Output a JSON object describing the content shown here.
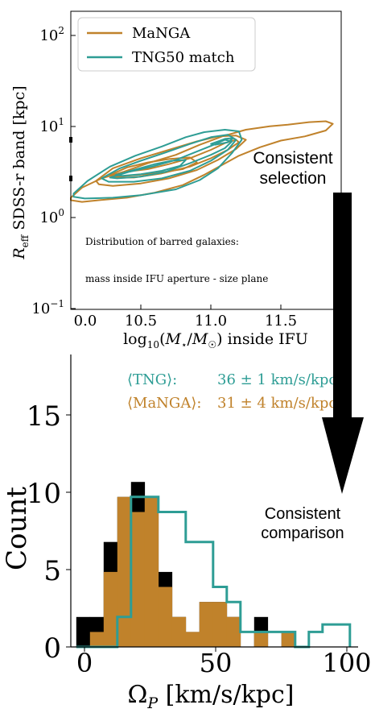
{
  "colors": {
    "manga": "#c0822b",
    "tng": "#2e9d95",
    "black": "#000000"
  },
  "annotations": {
    "selection": "Consistent\nselection",
    "comparison": "Consistent\ncomparison"
  },
  "chart_data": [
    {
      "type": "contour",
      "ylabel": "R_eff SDSS-r band [kpc]",
      "xlabel": "log10(M*/M☉) inside IFU",
      "x_ticks": [
        "0.0",
        "10.5",
        "11.0",
        "11.5"
      ],
      "y_ticks": [
        "10^-1",
        "10^0",
        "10^1",
        "10^2"
      ],
      "xlim": [
        10.0,
        11.93
      ],
      "ylim_log10": [
        -1,
        2.55
      ],
      "y_scale": "log",
      "legend": {
        "placement": "top-left",
        "entries": [
          "MaNGA",
          "TNG50 match"
        ]
      },
      "text_lines": [
        "Distribution of barred galaxies:",
        "mass inside IFU aperture - size plane"
      ],
      "series": [
        {
          "name": "MaNGA",
          "contours": [
            [
              [
                10.0,
                0.33
              ],
              [
                10.08,
                0.45
              ],
              [
                10.22,
                0.56
              ],
              [
                10.38,
                0.64
              ],
              [
                10.55,
                0.74
              ],
              [
                10.75,
                0.84
              ],
              [
                10.92,
                0.96
              ],
              [
                11.08,
                1.06
              ],
              [
                11.25,
                1.14
              ],
              [
                11.42,
                1.18
              ],
              [
                11.55,
                1.2
              ],
              [
                11.7,
                1.23
              ],
              [
                11.82,
                1.24
              ],
              [
                11.87,
                1.21
              ],
              [
                11.82,
                1.13
              ],
              [
                11.67,
                1.06
              ],
              [
                11.5,
                1.01
              ],
              [
                11.35,
                0.93
              ],
              [
                11.2,
                0.83
              ],
              [
                11.08,
                0.72
              ],
              [
                10.95,
                0.6
              ],
              [
                10.8,
                0.48
              ],
              [
                10.6,
                0.39
              ],
              [
                10.4,
                0.33
              ],
              [
                10.2,
                0.3
              ],
              [
                10.08,
                0.28
              ],
              [
                10.0,
                0.3
              ]
            ],
            [
              [
                10.18,
                0.53
              ],
              [
                10.3,
                0.68
              ],
              [
                10.5,
                0.8
              ],
              [
                10.7,
                0.9
              ],
              [
                10.9,
                1.0
              ],
              [
                11.05,
                1.06
              ],
              [
                11.18,
                1.07
              ],
              [
                11.25,
                1.02
              ],
              [
                11.18,
                0.91
              ],
              [
                11.05,
                0.78
              ],
              [
                10.9,
                0.66
              ],
              [
                10.7,
                0.56
              ],
              [
                10.5,
                0.5
              ],
              [
                10.3,
                0.47
              ],
              [
                10.2,
                0.49
              ]
            ],
            [
              [
                10.3,
                0.59
              ],
              [
                10.4,
                0.64
              ],
              [
                10.55,
                0.67
              ],
              [
                10.7,
                0.73
              ],
              [
                10.85,
                0.8
              ],
              [
                11.0,
                0.9
              ],
              [
                11.1,
                0.98
              ],
              [
                11.18,
                1.02
              ],
              [
                11.2,
                0.99
              ],
              [
                11.12,
                0.9
              ],
              [
                11.0,
                0.8
              ],
              [
                10.85,
                0.7
              ],
              [
                10.65,
                0.62
              ],
              [
                10.45,
                0.57
              ],
              [
                10.33,
                0.57
              ]
            ],
            [
              [
                10.28,
                0.6
              ],
              [
                10.4,
                0.69
              ],
              [
                10.55,
                0.75
              ],
              [
                10.7,
                0.79
              ],
              [
                10.85,
                0.81
              ],
              [
                10.9,
                0.75
              ],
              [
                10.8,
                0.67
              ],
              [
                10.6,
                0.62
              ],
              [
                10.4,
                0.59
              ],
              [
                10.3,
                0.58
              ]
            ]
          ]
        },
        {
          "name": "TNG50 match",
          "contours": [
            [
              [
                10.02,
                0.38
              ],
              [
                10.12,
                0.53
              ],
              [
                10.28,
                0.7
              ],
              [
                10.46,
                0.83
              ],
              [
                10.65,
                0.94
              ],
              [
                10.82,
                1.05
              ],
              [
                10.95,
                1.11
              ],
              [
                11.1,
                1.14
              ],
              [
                11.2,
                1.12
              ],
              [
                11.22,
                1.02
              ],
              [
                11.15,
                0.86
              ],
              [
                11.05,
                0.68
              ],
              [
                10.92,
                0.54
              ],
              [
                10.75,
                0.43
              ],
              [
                10.5,
                0.36
              ],
              [
                10.3,
                0.33
              ],
              [
                10.1,
                0.32
              ],
              [
                10.02,
                0.34
              ]
            ],
            [
              [
                10.22,
                0.56
              ],
              [
                10.35,
                0.68
              ],
              [
                10.5,
                0.77
              ],
              [
                10.68,
                0.87
              ],
              [
                10.85,
                0.97
              ],
              [
                11.0,
                1.05
              ],
              [
                11.12,
                1.08
              ],
              [
                11.18,
                1.02
              ],
              [
                11.12,
                0.9
              ],
              [
                11.0,
                0.77
              ],
              [
                10.85,
                0.65
              ],
              [
                10.65,
                0.56
              ],
              [
                10.45,
                0.52
              ],
              [
                10.27,
                0.52
              ]
            ],
            [
              [
                10.28,
                0.57
              ],
              [
                10.42,
                0.64
              ],
              [
                10.58,
                0.7
              ],
              [
                10.75,
                0.78
              ],
              [
                10.9,
                0.88
              ],
              [
                11.02,
                0.96
              ],
              [
                11.1,
                1.02
              ],
              [
                11.15,
                1.0
              ],
              [
                11.1,
                0.92
              ],
              [
                11.0,
                0.84
              ],
              [
                10.85,
                0.74
              ],
              [
                10.68,
                0.64
              ],
              [
                10.5,
                0.58
              ],
              [
                10.33,
                0.56
              ]
            ],
            [
              [
                10.32,
                0.6
              ],
              [
                10.45,
                0.66
              ],
              [
                10.6,
                0.73
              ],
              [
                10.72,
                0.77
              ],
              [
                10.82,
                0.78
              ],
              [
                10.78,
                0.71
              ],
              [
                10.65,
                0.65
              ],
              [
                10.5,
                0.61
              ],
              [
                10.37,
                0.59
              ]
            ],
            [
              [
                11.0,
                0.97
              ],
              [
                11.1,
                1.03
              ],
              [
                11.16,
                1.04
              ],
              [
                11.12,
                0.99
              ],
              [
                11.03,
                0.96
              ]
            ]
          ]
        }
      ]
    },
    {
      "type": "histogram",
      "xlabel": "Ω_P [km/s/kpc]",
      "ylabel": "Count",
      "xlim": [
        -2,
        103
      ],
      "ylim": [
        0,
        19.5
      ],
      "x_ticks": [
        0,
        50,
        100
      ],
      "y_ticks": [
        0,
        5,
        10,
        15
      ],
      "bin_edges": [
        0,
        5,
        10,
        15,
        20,
        25,
        30,
        35,
        40,
        45,
        50,
        55,
        60,
        65,
        70,
        75,
        80,
        85,
        90,
        95,
        100
      ],
      "legend": {
        "placement": "top-right",
        "entries": [
          {
            "label": "⟨TNG⟩:",
            "value": "36 ± 1 km/s/kpc"
          },
          {
            "label": "⟨MaNGA⟩:",
            "value": "31 ± 4 km/s/kpc"
          }
        ]
      },
      "series": [
        {
          "name": "MaNGA",
          "style": "filled",
          "values": [
            0,
            1,
            5,
            10,
            9,
            10,
            4,
            2,
            1,
            3,
            3,
            2,
            0,
            1,
            0,
            1,
            0,
            0,
            0,
            0
          ]
        },
        {
          "name": "black",
          "style": "filled",
          "values": [
            2,
            2,
            7,
            10,
            11,
            10,
            5,
            2,
            1,
            3,
            3,
            2,
            0,
            2,
            0,
            1,
            0,
            0,
            0,
            0
          ]
        },
        {
          "name": "TNG",
          "style": "step",
          "values": [
            0,
            0,
            0,
            2,
            10,
            10,
            9,
            9,
            7,
            7,
            4,
            3,
            1,
            1,
            1,
            1,
            0,
            1,
            1.5,
            1.5
          ]
        }
      ]
    }
  ]
}
